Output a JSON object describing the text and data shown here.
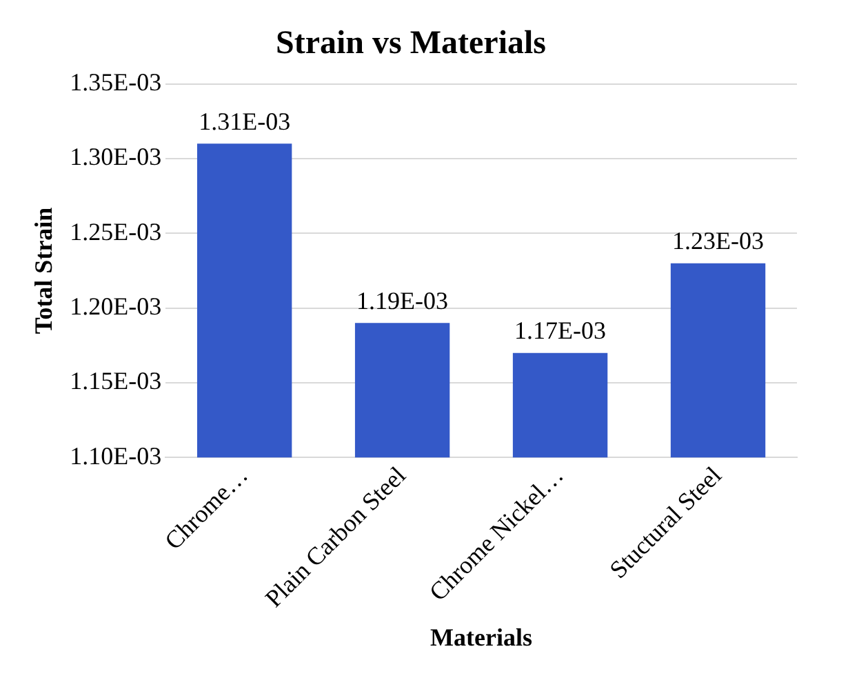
{
  "chart_data": {
    "type": "bar",
    "title": "Strain vs Materials",
    "xlabel": "Materials",
    "ylabel": "Total Strain",
    "categories": [
      "Chrome…",
      "Plain Carbon Steel",
      "Chrome Nickel…",
      "Stuctural Steel"
    ],
    "values": [
      0.00131,
      0.00119,
      0.00117,
      0.00123
    ],
    "value_labels": [
      "1.31E-03",
      "1.19E-03",
      "1.17E-03",
      "1.23E-03"
    ],
    "color": "#3459c8",
    "ylim": [
      0.0011,
      0.00135
    ],
    "yticks": [
      {
        "value": 0.0011,
        "label": "1.10E-03"
      },
      {
        "value": 0.00115,
        "label": "1.15E-03"
      },
      {
        "value": 0.0012,
        "label": "1.20E-03"
      },
      {
        "value": 0.00125,
        "label": "1.25E-03"
      },
      {
        "value": 0.0013,
        "label": "1.30E-03"
      },
      {
        "value": 0.00135,
        "label": "1.35E-03"
      }
    ],
    "grid": "y",
    "legend": false
  }
}
